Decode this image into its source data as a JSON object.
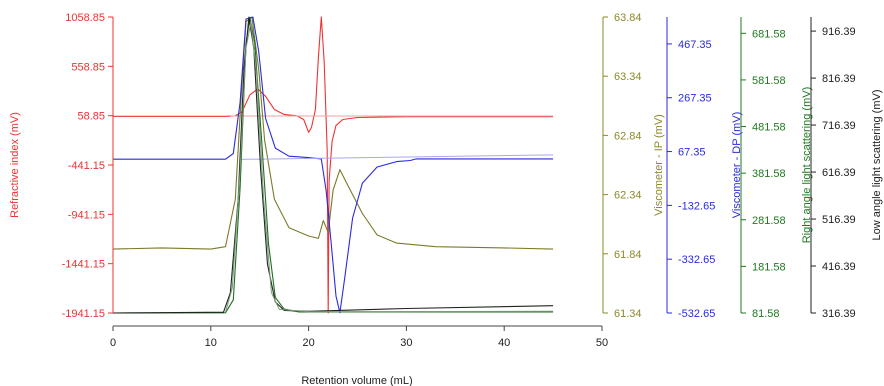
{
  "chart_data": {
    "type": "line",
    "xlabel": "Retention volume (mL)",
    "xlim": [
      0,
      50
    ],
    "x_ticks": [
      "0",
      "10",
      "20",
      "30",
      "40",
      "50"
    ],
    "grid": false,
    "axes": [
      {
        "id": "ri",
        "label": "Refractive index (mV)",
        "side": "left",
        "color": "#ee3333",
        "ylim": [
          -1941.15,
          1058.85
        ],
        "ticks": [
          "1058.85",
          "558.85",
          "58.85",
          "-441.15",
          "-941.15",
          "-1441.15",
          "-1941.15"
        ]
      },
      {
        "id": "ip",
        "label": "Viscometer - IP (mV)",
        "side": "right",
        "color": "#8a8a2a",
        "ylim": [
          61.34,
          63.84
        ],
        "ticks": [
          "63.84",
          "63.34",
          "62.84",
          "62.34",
          "61.84",
          "61.34"
        ]
      },
      {
        "id": "dp",
        "label": "Viscometer - DP (mV)",
        "side": "right",
        "color": "#2a2ae0",
        "ylim": [
          -532.65,
          567.35
        ],
        "ticks": [
          "467.35",
          "267.35",
          "67.35",
          "-132.65",
          "-332.65",
          "-532.65"
        ]
      },
      {
        "id": "rals",
        "label": "Right angle light scattering (mV)",
        "side": "right",
        "color": "#1f7a1f",
        "ylim": [
          81.58,
          716.58
        ],
        "ticks": [
          "681.58",
          "581.58",
          "481.58",
          "381.58",
          "281.58",
          "181.58",
          "81.58"
        ]
      },
      {
        "id": "lals",
        "label": "Low angle light scattering (mV)",
        "side": "right",
        "color": "#222222",
        "ylim": [
          316.39,
          946.39
        ],
        "ticks": [
          "916.39",
          "816.39",
          "716.39",
          "616.39",
          "516.39",
          "416.39",
          "316.39"
        ]
      }
    ],
    "series": [
      {
        "axis": "ri",
        "color": "#ee3333",
        "width": 1.1,
        "points": [
          [
            0,
            52
          ],
          [
            11.5,
            52
          ],
          [
            12.5,
            56
          ],
          [
            13.2,
            100
          ],
          [
            14,
            270
          ],
          [
            14.8,
            330
          ],
          [
            15.6,
            255
          ],
          [
            16.5,
            120
          ],
          [
            17.5,
            72
          ],
          [
            18.8,
            58
          ],
          [
            19.5,
            20
          ],
          [
            20,
            -110
          ],
          [
            20.3,
            -60
          ],
          [
            20.7,
            120
          ],
          [
            21.0,
            650
          ],
          [
            21.3,
            1060
          ],
          [
            21.6,
            600
          ],
          [
            21.9,
            -300
          ],
          [
            22.0,
            -1941.15
          ],
          [
            22.1,
            -600
          ],
          [
            22.4,
            -200
          ],
          [
            22.8,
            -40
          ],
          [
            23.5,
            20
          ],
          [
            25,
            40
          ],
          [
            30,
            48
          ],
          [
            45,
            48
          ]
        ]
      },
      {
        "axis": "ri",
        "color": "#f2a0a0",
        "width": 1,
        "points": [
          [
            12,
            55
          ],
          [
            45,
            55
          ]
        ]
      },
      {
        "axis": "ip",
        "color": "#7a7a2a",
        "width": 1.1,
        "points": [
          [
            0,
            61.88
          ],
          [
            5,
            61.89
          ],
          [
            10,
            61.88
          ],
          [
            11.5,
            61.9
          ],
          [
            12.5,
            62.3
          ],
          [
            13.2,
            63.3
          ],
          [
            13.6,
            63.8
          ],
          [
            14.2,
            63.84
          ],
          [
            14.9,
            63.4
          ],
          [
            15.5,
            62.8
          ],
          [
            16.5,
            62.3
          ],
          [
            18,
            62.06
          ],
          [
            20,
            61.99
          ],
          [
            21,
            61.97
          ],
          [
            21.5,
            62.12
          ],
          [
            22.0,
            62.02
          ],
          [
            22.5,
            62.38
          ],
          [
            23.2,
            62.55
          ],
          [
            24,
            62.42
          ],
          [
            25.5,
            62.18
          ],
          [
            27,
            62.0
          ],
          [
            29,
            61.93
          ],
          [
            33,
            61.9
          ],
          [
            40,
            61.89
          ],
          [
            45,
            61.88
          ]
        ]
      },
      {
        "axis": "dp",
        "color": "#2a2ae0",
        "width": 1.1,
        "points": [
          [
            0,
            39
          ],
          [
            11.5,
            39
          ],
          [
            12.3,
            60
          ],
          [
            13,
            250
          ],
          [
            13.6,
            560
          ],
          [
            14.3,
            567
          ],
          [
            14.9,
            440
          ],
          [
            15.6,
            190
          ],
          [
            16.6,
            80
          ],
          [
            18,
            50
          ],
          [
            20,
            45
          ],
          [
            21.3,
            40
          ],
          [
            21.8,
            -80
          ],
          [
            22.3,
            -270
          ],
          [
            22.8,
            -470
          ],
          [
            23.2,
            -532
          ],
          [
            23.7,
            -400
          ],
          [
            24.5,
            -180
          ],
          [
            25.5,
            -50
          ],
          [
            27,
            10
          ],
          [
            29,
            30
          ],
          [
            30.4,
            34
          ],
          [
            31,
            40
          ],
          [
            35,
            40
          ],
          [
            45,
            40
          ]
        ]
      },
      {
        "axis": "dp",
        "color": "#a8a8f0",
        "width": 1,
        "points": [
          [
            13,
            38
          ],
          [
            45,
            55
          ]
        ]
      },
      {
        "axis": "rals",
        "color": "#1f6e1f",
        "width": 1.1,
        "points": [
          [
            0,
            81.6
          ],
          [
            11.5,
            82
          ],
          [
            12.3,
            110
          ],
          [
            13,
            350
          ],
          [
            13.6,
            660
          ],
          [
            14.0,
            716
          ],
          [
            14.5,
            660
          ],
          [
            15.2,
            450
          ],
          [
            15.9,
            230
          ],
          [
            16.6,
            115
          ],
          [
            17.5,
            90
          ],
          [
            19,
            84
          ],
          [
            45,
            84
          ]
        ]
      },
      {
        "axis": "lals",
        "color": "#222222",
        "width": 1.1,
        "points": [
          [
            0,
            316.4
          ],
          [
            11.3,
            318
          ],
          [
            12.0,
            360
          ],
          [
            12.8,
            560
          ],
          [
            13.4,
            840
          ],
          [
            13.9,
            946
          ],
          [
            14.4,
            880
          ],
          [
            15.1,
            620
          ],
          [
            15.8,
            420
          ],
          [
            16.6,
            340
          ],
          [
            17.5,
            322
          ],
          [
            20,
            320
          ],
          [
            30,
            326
          ],
          [
            45,
            332
          ]
        ]
      },
      {
        "axis": "lals",
        "color": "#7a9a7a",
        "width": 1,
        "points": [
          [
            11.5,
            318
          ],
          [
            12.2,
            370
          ],
          [
            13,
            620
          ],
          [
            13.6,
            880
          ],
          [
            14.1,
            935
          ],
          [
            14.7,
            820
          ],
          [
            15.4,
            560
          ],
          [
            16.2,
            360
          ],
          [
            17,
            324
          ],
          [
            20,
            319
          ],
          [
            45,
            320
          ]
        ]
      }
    ]
  }
}
